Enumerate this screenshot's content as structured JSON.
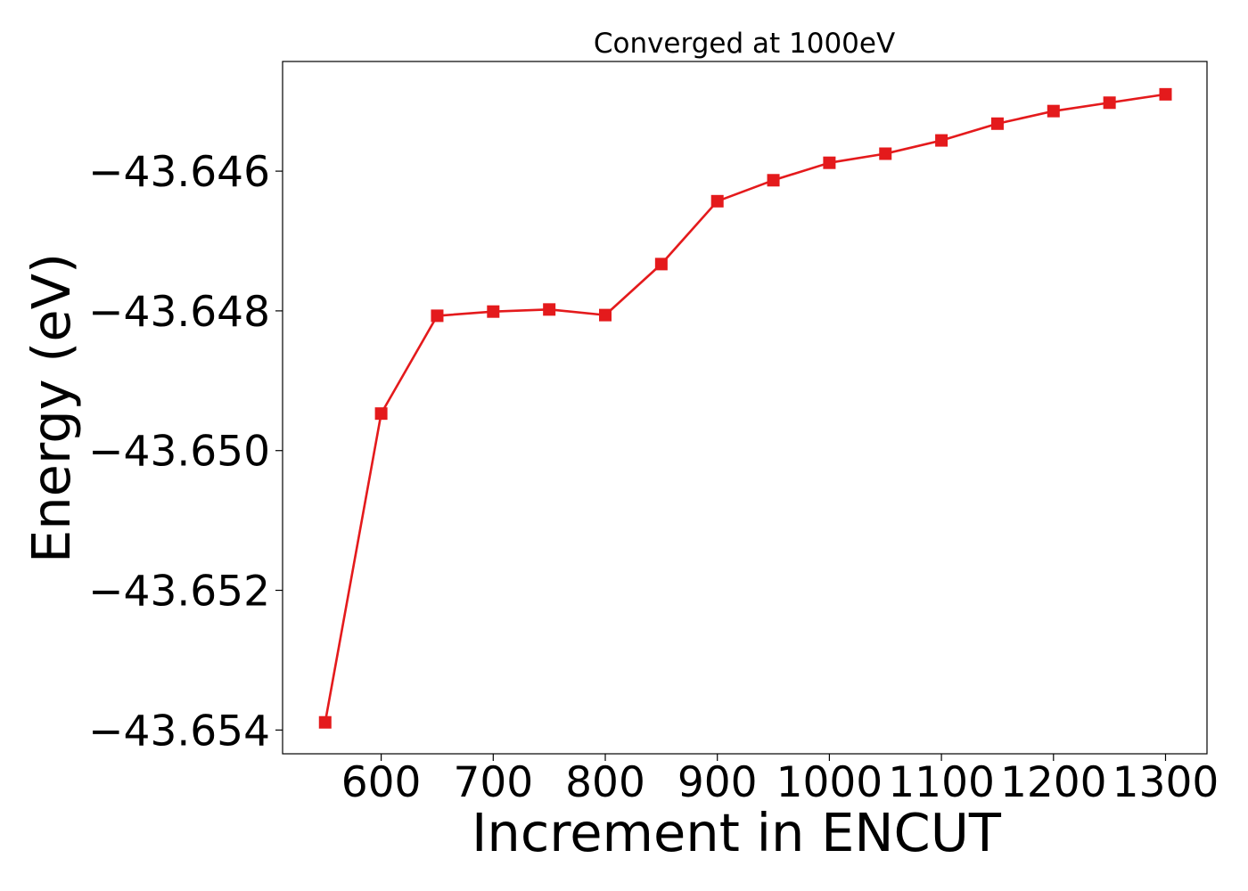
{
  "chart_data": {
    "type": "line",
    "title": "Converged at 1000eV",
    "xlabel": "Increment in ENCUT",
    "ylabel": "Energy (eV)",
    "xlim": [
      512,
      1337
    ],
    "ylim": [
      -43.65434,
      -43.64443
    ],
    "xticks": [
      600,
      700,
      800,
      900,
      1000,
      1100,
      1200,
      1300
    ],
    "xtick_labels": [
      "600",
      "700",
      "800",
      "900",
      "1000",
      "1100",
      "1200",
      "1300"
    ],
    "yticks": [
      -43.646,
      -43.648,
      -43.65,
      -43.652,
      -43.654
    ],
    "ytick_labels": [
      "−43.646",
      "−43.648",
      "−43.650",
      "−43.652",
      "−43.654"
    ],
    "grid": false,
    "series": [
      {
        "color": "#e41a1c",
        "marker": "square",
        "x": [
          550,
          600,
          650,
          700,
          750,
          800,
          850,
          900,
          950,
          1000,
          1050,
          1100,
          1150,
          1200,
          1250,
          1300
        ],
        "y": [
          -43.65389,
          -43.64947,
          -43.64807,
          -43.64801,
          -43.64798,
          -43.64806,
          -43.64733,
          -43.64643,
          -43.64613,
          -43.64588,
          -43.64575,
          -43.64556,
          -43.64532,
          -43.64514,
          -43.64502,
          -43.6449
        ]
      }
    ]
  }
}
